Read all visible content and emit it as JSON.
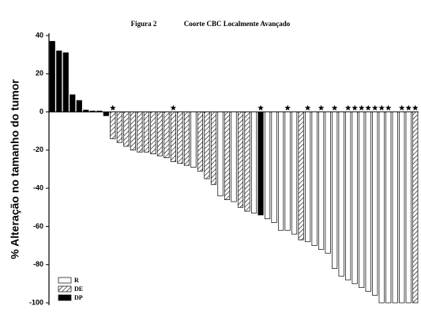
{
  "chart_data": {
    "type": "waterfall",
    "title": "Figura 2",
    "subtitle": "Coorte CBC Localmente Avançado",
    "y_label": "% Alteração no tamanho do tumor",
    "ylim": [
      -100,
      40
    ],
    "yticks": [
      -100,
      -80,
      -60,
      -40,
      -20,
      0,
      20,
      40
    ],
    "legend": [
      "R",
      "DE",
      "DP"
    ],
    "legend_position": "lower left",
    "values": [
      37,
      32,
      31,
      9,
      6,
      1,
      0.5,
      0.5,
      -2,
      -14,
      -16,
      -18,
      -20,
      -21,
      -21,
      -22,
      -23,
      -24,
      -26,
      -27,
      -28,
      -29,
      -31,
      -35,
      -38,
      -44,
      -46,
      -47,
      -50,
      -52,
      -53,
      -54,
      -56,
      -58,
      -62,
      -62,
      -64,
      -67,
      -68,
      -70,
      -72,
      -74,
      -82,
      -86,
      -88,
      -90,
      -92,
      -94,
      -96,
      -100,
      -100,
      -100,
      -100,
      -100,
      -100
    ],
    "groups": [
      2,
      2,
      2,
      2,
      2,
      2,
      2,
      2,
      2,
      1,
      1,
      1,
      1,
      1,
      1,
      1,
      1,
      1,
      1,
      1,
      1,
      0,
      1,
      1,
      1,
      0,
      1,
      0,
      1,
      1,
      0,
      2,
      0,
      0,
      0,
      0,
      0,
      1,
      0,
      0,
      0,
      0,
      0,
      0,
      0,
      0,
      0,
      0,
      0,
      0,
      0,
      0,
      0,
      0,
      1
    ],
    "starred": [
      false,
      false,
      false,
      false,
      false,
      false,
      false,
      false,
      false,
      true,
      false,
      false,
      false,
      false,
      false,
      false,
      false,
      false,
      true,
      false,
      false,
      false,
      false,
      false,
      false,
      false,
      false,
      false,
      false,
      false,
      false,
      true,
      false,
      false,
      false,
      true,
      false,
      false,
      true,
      false,
      true,
      false,
      true,
      false,
      true,
      true,
      true,
      true,
      true,
      true,
      true,
      false,
      true,
      true,
      true
    ]
  }
}
